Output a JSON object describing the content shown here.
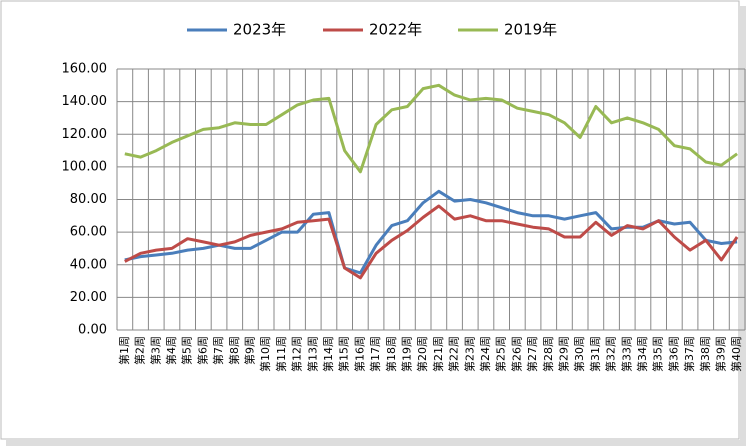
{
  "chart_data": {
    "type": "line",
    "categories": [
      "第1周",
      "第2周",
      "第3周",
      "第4周",
      "第5周",
      "第6周",
      "第7周",
      "第8周",
      "第9周",
      "第10周",
      "第11周",
      "第12周",
      "第13周",
      "第14周",
      "第15周",
      "第16周",
      "第17周",
      "第18周",
      "第19周",
      "第20周",
      "第21周",
      "第22周",
      "第23周",
      "第24周",
      "第25周",
      "第26周",
      "第27周",
      "第28周",
      "第29周",
      "第30周",
      "第31周",
      "第32周",
      "第33周",
      "第34周",
      "第35周",
      "第36周",
      "第37周",
      "第38周",
      "第39周",
      "第40周"
    ],
    "series": [
      {
        "name": "2023年",
        "color": "#4a7ebb",
        "values": [
          43,
          45,
          46,
          47,
          49,
          50,
          52,
          50,
          50,
          55,
          60,
          60,
          71,
          72,
          38,
          35,
          52,
          64,
          67,
          78,
          85,
          79,
          80,
          78,
          75,
          72,
          70,
          70,
          68,
          70,
          72,
          62,
          63,
          63,
          67,
          65,
          66,
          55,
          53,
          54
        ]
      },
      {
        "name": "2022年",
        "color": "#be4b48",
        "values": [
          42,
          47,
          49,
          50,
          56,
          54,
          52,
          54,
          58,
          60,
          62,
          66,
          67,
          68,
          38,
          32,
          47,
          55,
          61,
          69,
          76,
          68,
          70,
          67,
          67,
          65,
          63,
          62,
          57,
          57,
          66,
          58,
          64,
          62,
          67,
          57,
          49,
          55,
          43,
          57
        ]
      },
      {
        "name": "2019年",
        "color": "#98b954",
        "values": [
          108,
          106,
          110,
          115,
          119,
          123,
          124,
          127,
          126,
          126,
          132,
          138,
          141,
          142,
          110,
          97,
          126,
          135,
          137,
          148,
          150,
          144,
          141,
          142,
          141,
          136,
          134,
          132,
          127,
          118,
          137,
          127,
          130,
          127,
          123,
          113,
          111,
          103,
          101,
          108
        ]
      }
    ],
    "ylim": [
      0,
      160
    ],
    "yticks": [
      {
        "value": 0,
        "label": "0.00"
      },
      {
        "value": 20,
        "label": "20.00"
      },
      {
        "value": 40,
        "label": "40.00"
      },
      {
        "value": 60,
        "label": "60.00"
      },
      {
        "value": 80,
        "label": "80.00"
      },
      {
        "value": 100,
        "label": "100.00"
      },
      {
        "value": 120,
        "label": "120.00"
      },
      {
        "value": 140,
        "label": "140.00"
      },
      {
        "value": 160,
        "label": "160.00"
      }
    ],
    "grid": true,
    "legend": "top"
  }
}
